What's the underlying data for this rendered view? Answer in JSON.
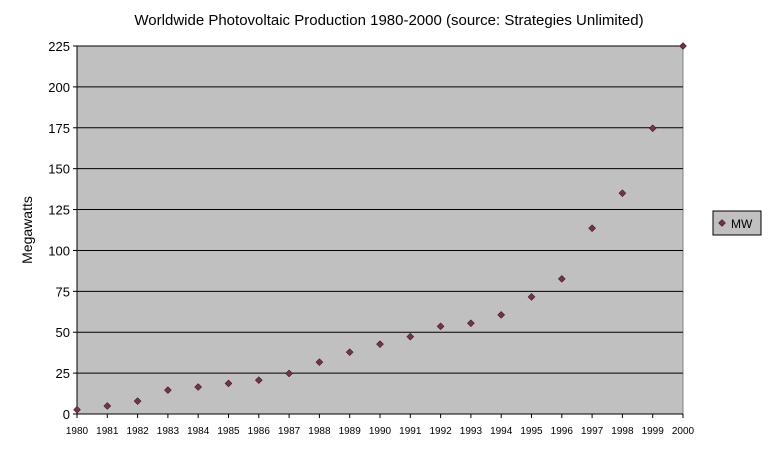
{
  "chart_data": {
    "type": "scatter",
    "title": "Worldwide Photovoltaic Production 1980-2000 (source: Strategies Unlimited)",
    "xlabel": "",
    "ylabel": "Megawatts",
    "x": [
      1980,
      1981,
      1982,
      1983,
      1984,
      1985,
      1986,
      1987,
      1988,
      1989,
      1990,
      1991,
      1992,
      1993,
      1994,
      1995,
      1996,
      1997,
      1998,
      1999,
      2000
    ],
    "series": [
      {
        "name": "MW",
        "values": [
          2.6,
          4.9,
          7.9,
          14.6,
          16.5,
          18.7,
          20.7,
          24.8,
          31.7,
          37.8,
          42.7,
          47.3,
          53.6,
          55.5,
          60.6,
          71.6,
          82.6,
          113.6,
          135,
          174.7,
          225
        ]
      }
    ],
    "xlim": [
      1980,
      2000
    ],
    "ylim": [
      0,
      225
    ],
    "yticks": [
      0,
      25,
      50,
      75,
      100,
      125,
      150,
      175,
      200,
      225
    ],
    "grid": "horizontal",
    "legend": "right",
    "colors": {
      "plot_background": "#c0c0c0",
      "marker": "#7a2e52",
      "gridline": "#000000"
    }
  }
}
